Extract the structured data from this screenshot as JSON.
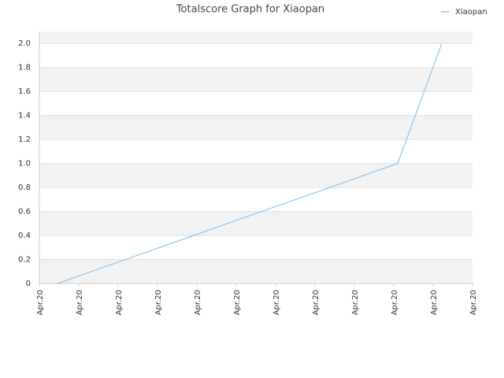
{
  "chart_data": {
    "type": "line",
    "title": "Totalscore Graph for Xiaopan",
    "x": [
      0.46,
      9.1,
      10.22
    ],
    "xlim": [
      0,
      11
    ],
    "xticks": [
      {
        "value": 0,
        "label": "Apr.20"
      },
      {
        "value": 1,
        "label": "Apr.20"
      },
      {
        "value": 2,
        "label": "Apr.20"
      },
      {
        "value": 3,
        "label": "Apr.20"
      },
      {
        "value": 4,
        "label": "Apr.20"
      },
      {
        "value": 5,
        "label": "Apr.20"
      },
      {
        "value": 6,
        "label": "Apr.20"
      },
      {
        "value": 7,
        "label": "Apr.20"
      },
      {
        "value": 8,
        "label": "Apr.20"
      },
      {
        "value": 9,
        "label": "Apr.20"
      },
      {
        "value": 10,
        "label": "Apr.20"
      },
      {
        "value": 11,
        "label": "Apr.20"
      }
    ],
    "series": [
      {
        "name": "Xiaopan",
        "color": "#8ec4ee",
        "values": [
          0,
          1,
          2
        ]
      }
    ],
    "ylim": [
      0,
      2.1
    ],
    "yticks": [
      0,
      {
        "value": 0.2,
        "label": "0.2"
      },
      {
        "value": 0.4,
        "label": "0.4"
      },
      {
        "value": 0.6,
        "label": "0.6"
      },
      {
        "value": 0.8,
        "label": "0.8"
      },
      {
        "value": 1,
        "label": "1.0"
      },
      {
        "value": 1.2,
        "label": "1.2"
      },
      {
        "value": 1.4,
        "label": "1.4"
      },
      {
        "value": 1.6,
        "label": "1.6"
      },
      {
        "value": 1.8,
        "label": "1.8"
      },
      {
        "value": 2,
        "label": "2.0"
      }
    ],
    "grid": true,
    "legend": "top-right"
  }
}
